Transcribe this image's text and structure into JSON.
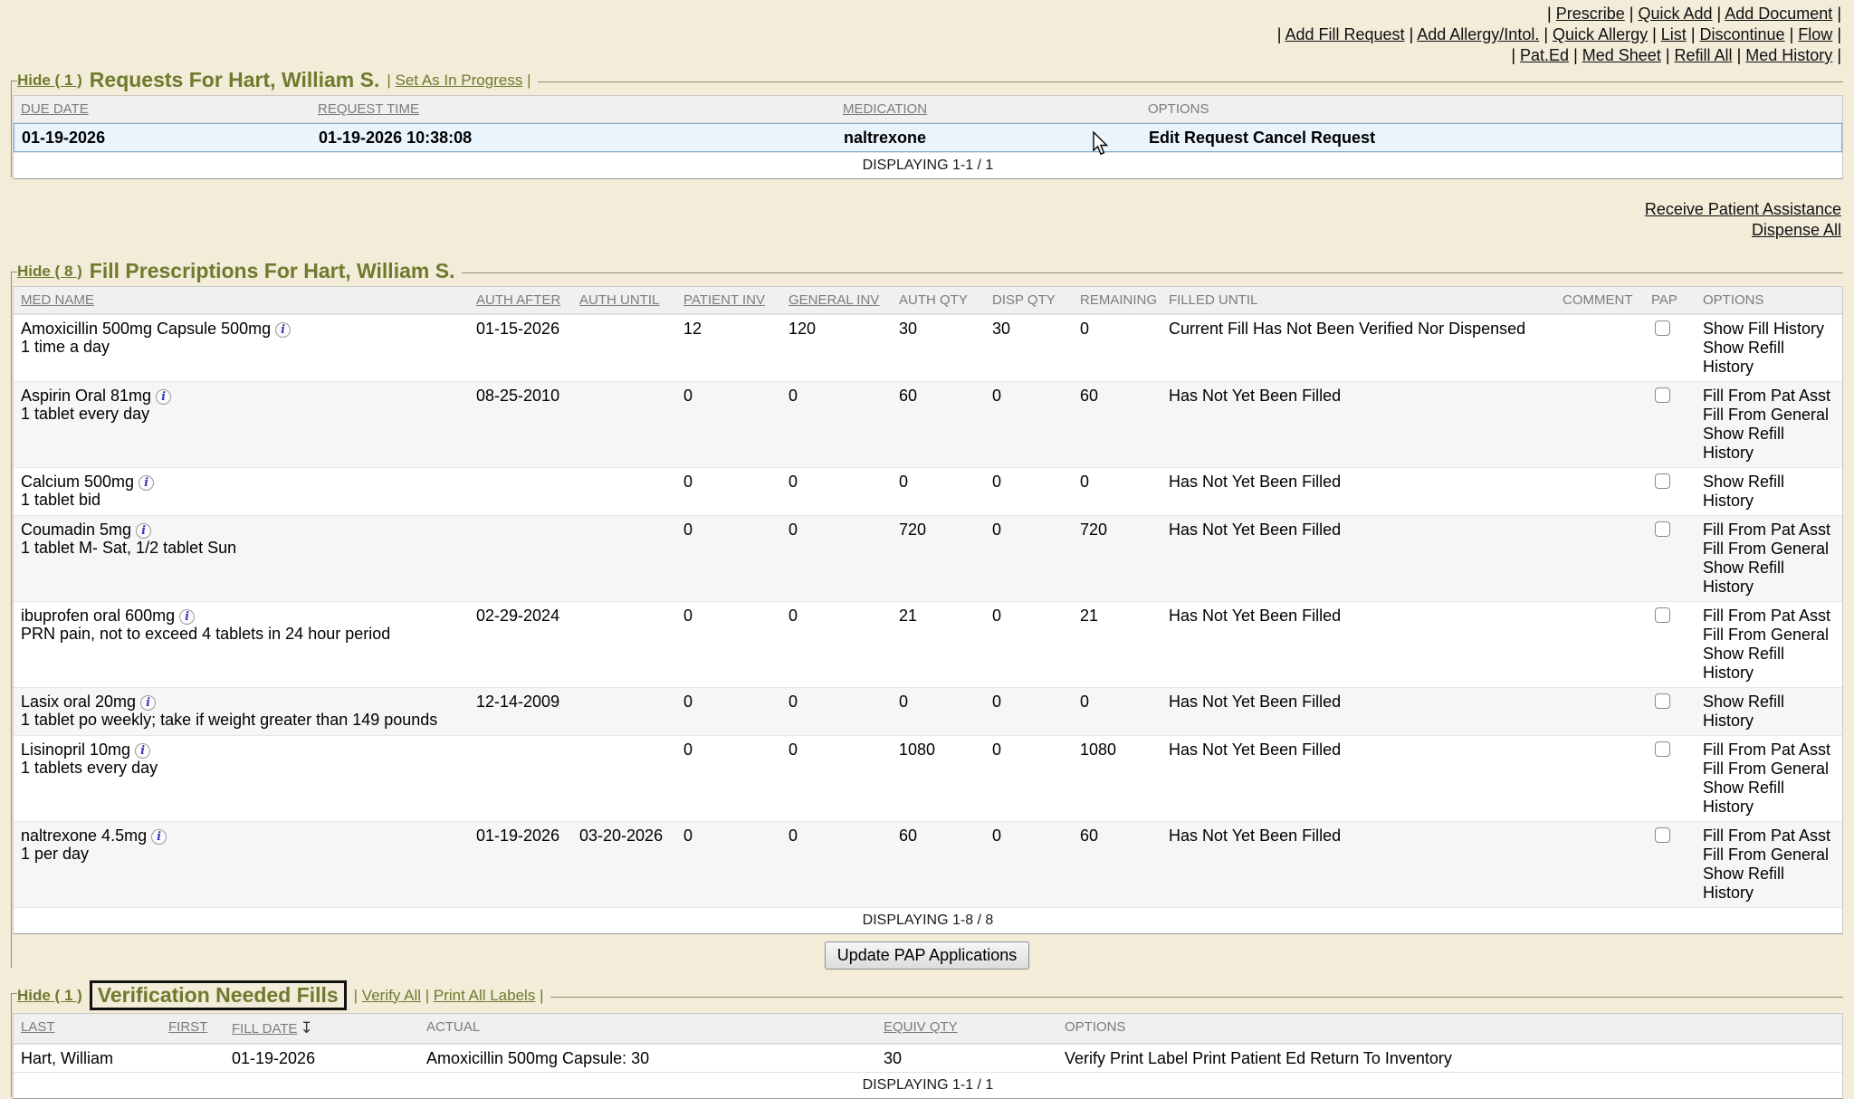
{
  "icons": {
    "info": "i",
    "sort_desc": "↧"
  },
  "toolbar": {
    "row1": [
      {
        "label": "Prescribe"
      },
      {
        "label": "Quick Add"
      },
      {
        "label": "Add Document"
      }
    ],
    "row2": [
      {
        "label": "Add Fill Request"
      },
      {
        "label": "Add Allergy/Intol."
      },
      {
        "label": "Quick Allergy"
      },
      {
        "label": "List"
      },
      {
        "label": "Discontinue"
      },
      {
        "label": "Flow"
      }
    ],
    "row3": [
      {
        "label": "Pat.Ed"
      },
      {
        "label": "Med Sheet"
      },
      {
        "label": "Refill All"
      },
      {
        "label": "Med History"
      }
    ]
  },
  "requests": {
    "hide_label": "Hide ( 1 )",
    "title": "Requests For Hart, William S.",
    "actions": [
      {
        "label": "Set As In Progress"
      }
    ],
    "columns": [
      "DUE DATE",
      "REQUEST TIME",
      "MEDICATION",
      "OPTIONS"
    ],
    "rows": [
      {
        "due_date": "01-19-2026",
        "request_time": "01-19-2026 10:38:08",
        "medication": "naltrexone",
        "options": [
          "Edit Request",
          "Cancel Request"
        ]
      }
    ],
    "displaying": "DISPLAYING 1-1 / 1"
  },
  "side_links": {
    "receive_patient_assistance": "Receive Patient Assistance",
    "dispense_all": "Dispense All"
  },
  "fills": {
    "hide_label": "Hide ( 8 )",
    "title": "Fill Prescriptions For Hart, William S.",
    "columns": [
      "MED NAME",
      "AUTH AFTER",
      "AUTH UNTIL",
      "PATIENT INV",
      "GENERAL INV",
      "AUTH QTY",
      "DISP QTY",
      "REMAINING",
      "FILLED UNTIL",
      "COMMENT",
      "PAP",
      "OPTIONS"
    ],
    "rows": [
      {
        "name": "Amoxicillin 500mg Capsule 500mg",
        "sig": "1 time a day",
        "auth_after": "01-15-2026",
        "auth_until": "",
        "patient_inv": "12",
        "general_inv": "120",
        "auth_qty": "30",
        "disp_qty": "30",
        "remaining": "0",
        "filled_until": "Current Fill Has Not Been Verified Nor Dispensed",
        "comment": "",
        "options": [
          "Show Fill History",
          "Show Refill History"
        ]
      },
      {
        "name": "Aspirin Oral 81mg",
        "sig": "1 tablet every day",
        "auth_after": "08-25-2010",
        "auth_until": "",
        "patient_inv": "0",
        "general_inv": "0",
        "auth_qty": "60",
        "disp_qty": "0",
        "remaining": "60",
        "filled_until": "Has Not Yet Been Filled",
        "comment": "",
        "options": [
          "Fill From Pat Asst",
          "Fill From General",
          "Show Refill History"
        ]
      },
      {
        "name": "Calcium 500mg",
        "sig": "1 tablet bid",
        "auth_after": "",
        "auth_until": "",
        "patient_inv": "0",
        "general_inv": "0",
        "auth_qty": "0",
        "disp_qty": "0",
        "remaining": "0",
        "filled_until": "Has Not Yet Been Filled",
        "comment": "",
        "options": [
          "Show Refill History"
        ]
      },
      {
        "name": "Coumadin 5mg",
        "sig": "1 tablet M- Sat, 1/2 tablet Sun",
        "auth_after": "",
        "auth_until": "",
        "patient_inv": "0",
        "general_inv": "0",
        "auth_qty": "720",
        "disp_qty": "0",
        "remaining": "720",
        "filled_until": "Has Not Yet Been Filled",
        "comment": "",
        "options": [
          "Fill From Pat Asst",
          "Fill From General",
          "Show Refill History"
        ]
      },
      {
        "name": "ibuprofen oral 600mg",
        "sig": "PRN pain, not to exceed 4 tablets in 24 hour period",
        "auth_after": "02-29-2024",
        "auth_until": "",
        "patient_inv": "0",
        "general_inv": "0",
        "auth_qty": "21",
        "disp_qty": "0",
        "remaining": "21",
        "filled_until": "Has Not Yet Been Filled",
        "comment": "",
        "options": [
          "Fill From Pat Asst",
          "Fill From General",
          "Show Refill History"
        ]
      },
      {
        "name": "Lasix oral 20mg",
        "sig": "1 tablet po weekly; take if weight greater than 149 pounds",
        "auth_after": "12-14-2009",
        "auth_until": "",
        "patient_inv": "0",
        "general_inv": "0",
        "auth_qty": "0",
        "disp_qty": "0",
        "remaining": "0",
        "filled_until": "Has Not Yet Been Filled",
        "comment": "",
        "options": [
          "Show Refill History"
        ]
      },
      {
        "name": "Lisinopril 10mg",
        "sig": "1 tablets every day",
        "auth_after": "",
        "auth_until": "",
        "patient_inv": "0",
        "general_inv": "0",
        "auth_qty": "1080",
        "disp_qty": "0",
        "remaining": "1080",
        "filled_until": "Has Not Yet Been Filled",
        "comment": "",
        "options": [
          "Fill From Pat Asst",
          "Fill From General",
          "Show Refill History"
        ]
      },
      {
        "name": "naltrexone 4.5mg",
        "sig": "1 per day",
        "auth_after": "01-19-2026",
        "auth_until": "03-20-2026",
        "patient_inv": "0",
        "general_inv": "0",
        "auth_qty": "60",
        "disp_qty": "0",
        "remaining": "60",
        "filled_until": "Has Not Yet Been Filled",
        "comment": "",
        "options": [
          "Fill From Pat Asst",
          "Fill From General",
          "Show Refill History"
        ]
      }
    ],
    "displaying": "DISPLAYING 1-8 / 8",
    "button_label": "Update PAP Applications"
  },
  "verification": {
    "hide_label": "Hide ( 1 )",
    "title": "Verification Needed Fills",
    "actions": [
      {
        "label": "Verify All"
      },
      {
        "label": "Print All Labels"
      }
    ],
    "columns": [
      "LAST",
      "FIRST",
      "FILL DATE",
      "ACTUAL",
      "EQUIV QTY",
      "OPTIONS"
    ],
    "rows": [
      {
        "last": "Hart, William",
        "first": "",
        "fill_date": "01-19-2026",
        "actual": "Amoxicillin 500mg Capsule: 30",
        "equiv_qty": "30",
        "options": [
          "Verify",
          "Print Label",
          "Print Patient Ed",
          "Return To Inventory"
        ]
      }
    ],
    "displaying": "DISPLAYING 1-1 / 1"
  }
}
